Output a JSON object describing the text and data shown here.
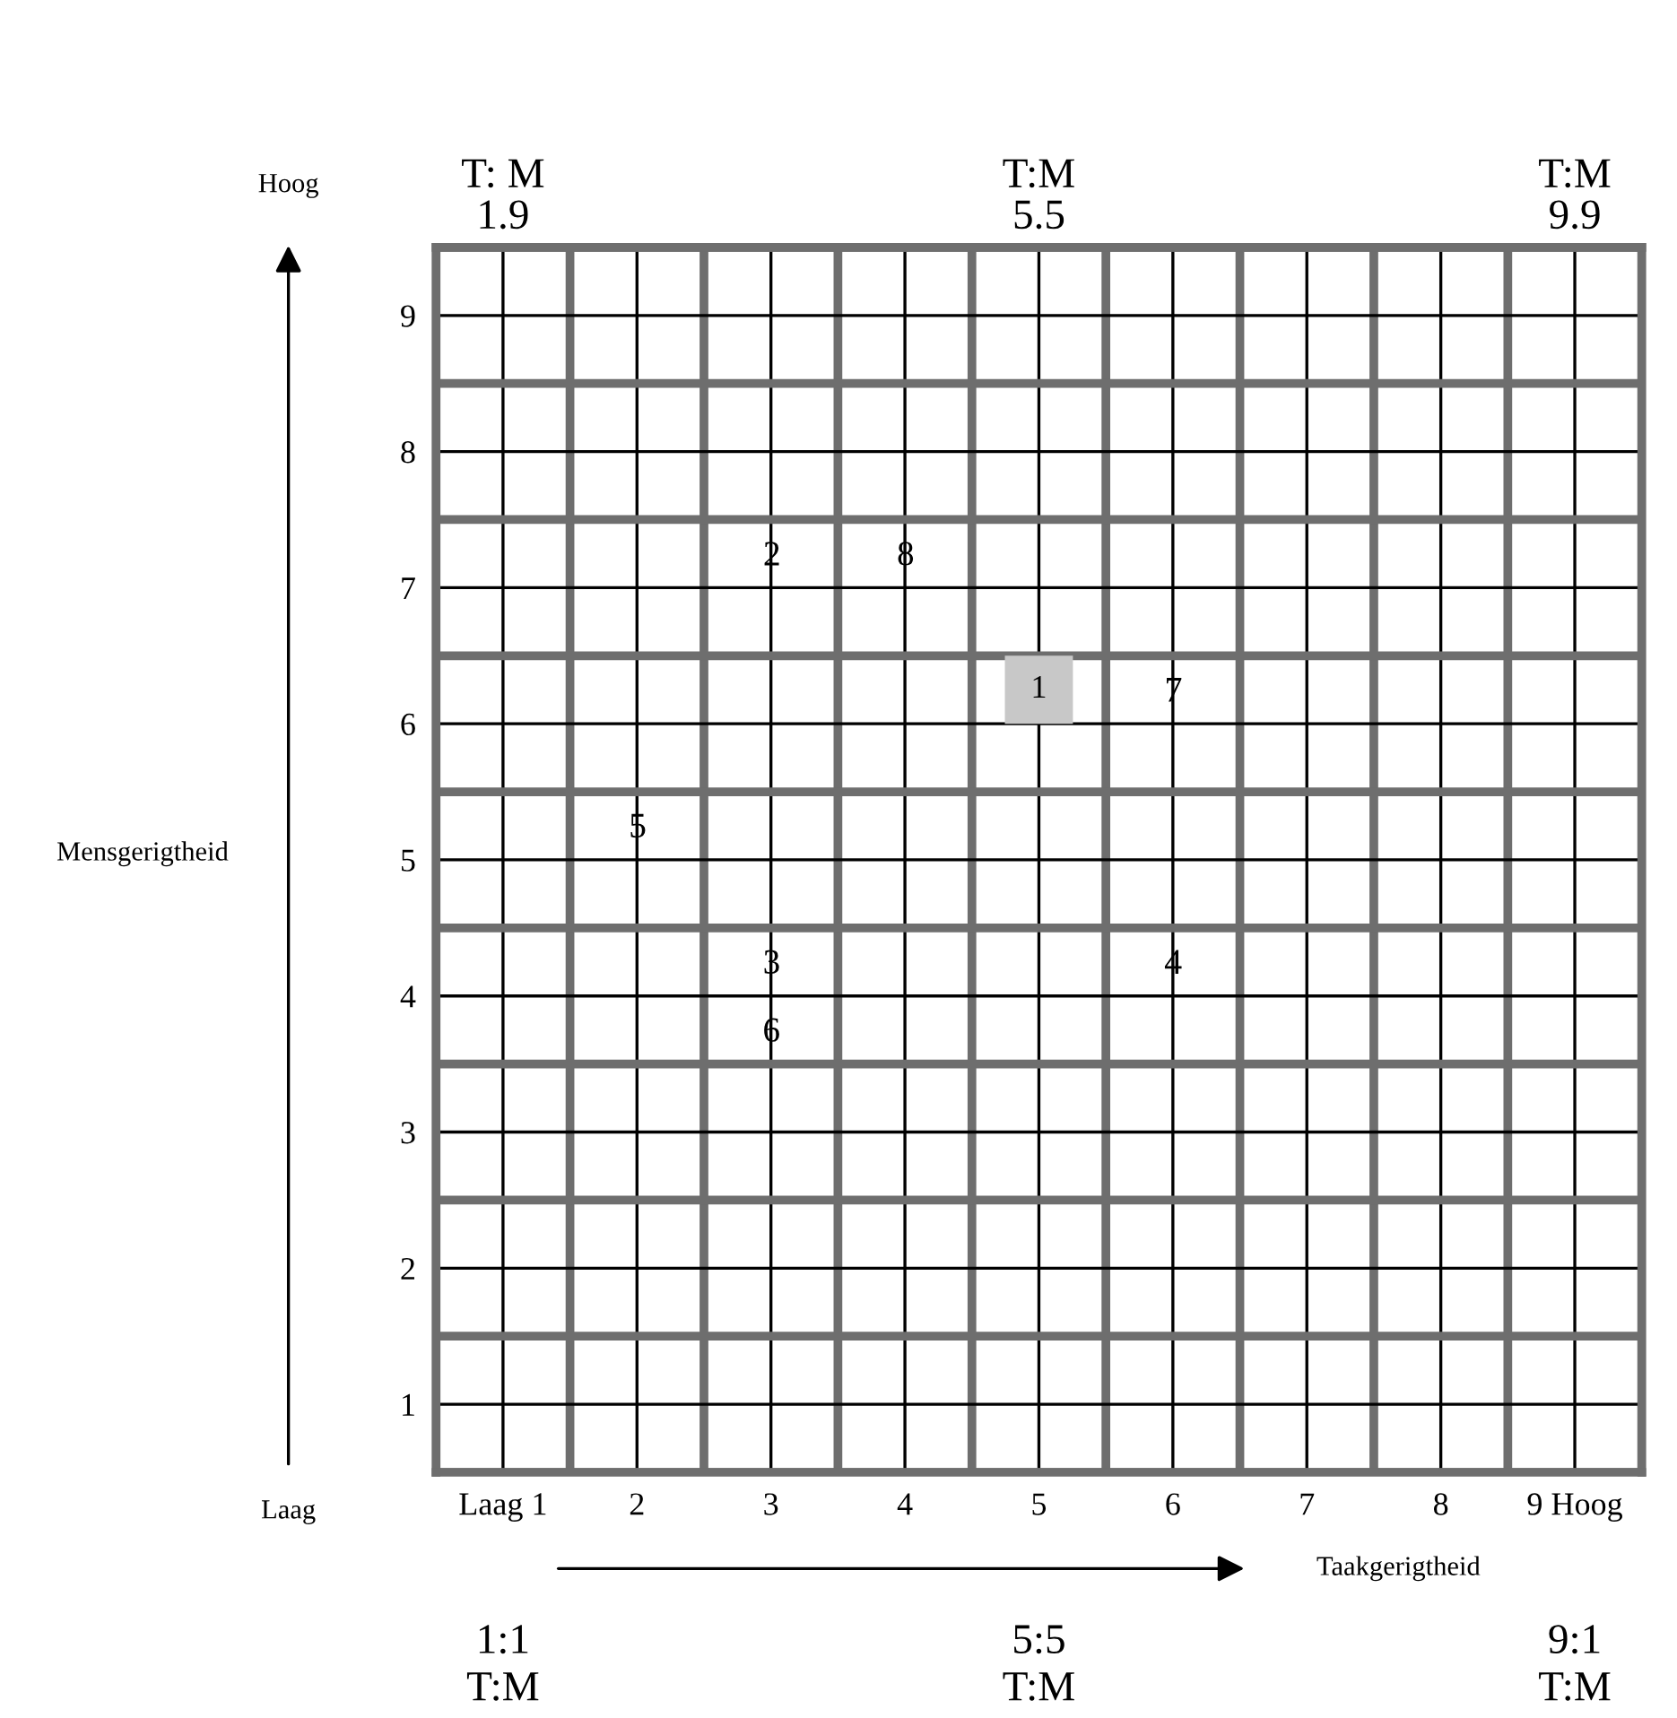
{
  "chart_data": {
    "type": "scatter",
    "xlabel": "Taakgerigtheid",
    "series": [
      {
        "name": "1",
        "x": [
          5
        ],
        "values": [
          6.25
        ],
        "color": "#c8c8c8",
        "marker": "square"
      },
      {
        "name": "2",
        "x": [
          3
        ],
        "values": [
          7.25
        ]
      },
      {
        "name": "3",
        "x": [
          3
        ],
        "values": [
          4.25
        ]
      },
      {
        "name": "4",
        "x": [
          6
        ],
        "values": [
          4.25
        ]
      },
      {
        "name": "5",
        "x": [
          2
        ],
        "values": [
          5.25
        ]
      },
      {
        "name": "6",
        "x": [
          3
        ],
        "values": [
          3.75
        ]
      },
      {
        "name": "7",
        "x": [
          6
        ],
        "values": [
          6.25
        ]
      },
      {
        "name": "8",
        "x": [
          4
        ],
        "values": [
          7.25
        ]
      }
    ],
    "xlim": [
      0.5,
      9.5
    ],
    "ylim": [
      0.5,
      9.5
    ],
    "xticks": [
      {
        "value": 1,
        "label": "Laag 1"
      },
      2,
      3,
      4,
      5,
      6,
      7,
      8,
      {
        "value": 9,
        "label": "9 Hoog"
      }
    ],
    "yticks": [
      1,
      2,
      3,
      4,
      5,
      6,
      7,
      8,
      9
    ],
    "grid": true,
    "annotations": [
      "T: M\n1.9",
      "T:M\n5.5",
      "T:M\n9.9",
      "1:1\nT:M",
      "5:5\nT:M",
      "9:1\nT:M",
      "Hoog",
      "Laag",
      "Mensgerigtheid"
    ]
  }
}
